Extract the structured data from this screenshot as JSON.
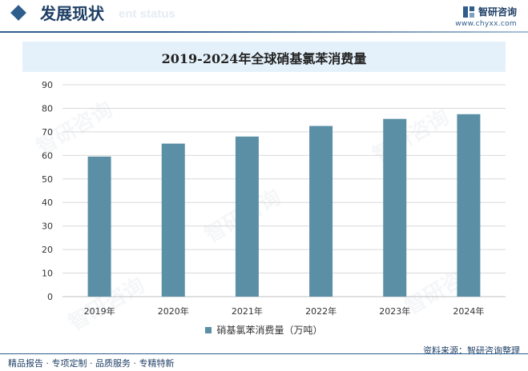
{
  "header": {
    "title": "发展现状",
    "ghost_text": "ent status",
    "brand_name": "智研咨询",
    "brand_url": "www.chyxx.com"
  },
  "chart_data": {
    "type": "bar",
    "title": "2019-2024年全球硝基氯苯消费量",
    "categories": [
      "2019年",
      "2020年",
      "2021年",
      "2022年",
      "2023年",
      "2024年"
    ],
    "series": [
      {
        "name": "硝基氯苯消费量（万吨）",
        "values": [
          59.5,
          65,
          68,
          72.5,
          75.5,
          77.5
        ]
      }
    ],
    "ylim": [
      0,
      90
    ],
    "yticks": [
      0,
      10,
      20,
      30,
      40,
      50,
      60,
      70,
      80,
      90
    ],
    "grid": true,
    "legend_position": "bottom",
    "bar_color": "#5b8fa6"
  },
  "footer": {
    "left": "精品报告 · 专项定制 · 品质服务 · 专精特新",
    "source": "资料来源：智研咨询整理"
  },
  "watermark_text": "智研咨询"
}
